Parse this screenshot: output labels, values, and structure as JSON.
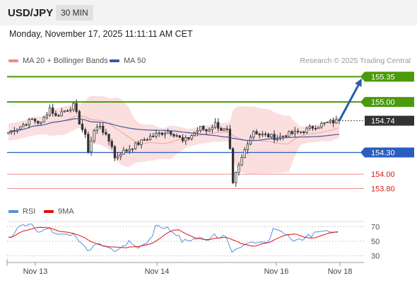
{
  "header": {
    "symbol": "USD/JPY",
    "timeframe": "30 MIN"
  },
  "date_label": "Monday, November 17, 2025 11:11:11 AM CET",
  "research": "Research © 2025 Trading Central",
  "legend": {
    "bollinger": {
      "label": "MA 20 + Bollinger Bands",
      "color": "#f08a8a"
    },
    "ma50": {
      "label": "MA 50",
      "color": "#3d5a9e"
    },
    "rsi": {
      "label": "RSI",
      "color": "#5b8de0"
    },
    "rsi_ma": {
      "label": "9MA",
      "color": "#e01010"
    }
  },
  "chart_data": [
    {
      "type": "candlestick",
      "x_ticks": [
        "Nov 13",
        "Nov 14",
        "Nov 16",
        "Nov 18"
      ],
      "ylim": [
        153.55,
        155.55
      ],
      "price_levels": [
        {
          "value": 155.35,
          "label": "155.35",
          "kind": "resistance-target"
        },
        {
          "value": 155.0,
          "label": "155.00",
          "kind": "resistance"
        },
        {
          "value": 154.74,
          "label": "154.74",
          "kind": "last-price"
        },
        {
          "value": 154.3,
          "label": "154.30",
          "kind": "support"
        },
        {
          "value": 154.0,
          "label": "154.00",
          "kind": "minor"
        },
        {
          "value": 153.8,
          "label": "153.80",
          "kind": "minor"
        }
      ],
      "close_path": [
        [
          0,
          154.58
        ],
        [
          4,
          154.66
        ],
        [
          8,
          154.76
        ],
        [
          11,
          154.7
        ],
        [
          14,
          154.92
        ],
        [
          16,
          154.8
        ],
        [
          18,
          154.86
        ],
        [
          20,
          154.9
        ],
        [
          22,
          154.95
        ],
        [
          24,
          154.72
        ],
        [
          26,
          154.52
        ],
        [
          27,
          154.33
        ],
        [
          29,
          154.6
        ],
        [
          31,
          154.68
        ],
        [
          33,
          154.52
        ],
        [
          35,
          154.4
        ],
        [
          36,
          154.22
        ],
        [
          38,
          154.3
        ],
        [
          40,
          154.33
        ],
        [
          42,
          154.38
        ],
        [
          45,
          154.45
        ],
        [
          48,
          154.52
        ],
        [
          51,
          154.56
        ],
        [
          54,
          154.6
        ],
        [
          57,
          154.54
        ],
        [
          59,
          154.45
        ],
        [
          61,
          154.5
        ],
        [
          63,
          154.58
        ],
        [
          65,
          154.64
        ],
        [
          67,
          154.6
        ],
        [
          70,
          154.7
        ],
        [
          72,
          154.62
        ],
        [
          74,
          154.6
        ],
        [
          75,
          154.32
        ],
        [
          76,
          153.85
        ],
        [
          77,
          154.0
        ],
        [
          79,
          154.22
        ],
        [
          81,
          154.45
        ],
        [
          83,
          154.6
        ],
        [
          85,
          154.55
        ],
        [
          88,
          154.53
        ],
        [
          91,
          154.5
        ],
        [
          94,
          154.55
        ],
        [
          97,
          154.57
        ],
        [
          100,
          154.6
        ],
        [
          103,
          154.65
        ],
        [
          106,
          154.69
        ],
        [
          109,
          154.72
        ],
        [
          112,
          154.74
        ]
      ],
      "candle_count": 113
    },
    {
      "type": "line",
      "series": [
        {
          "name": "RSI",
          "color": "#5b8de0"
        },
        {
          "name": "9MA",
          "color": "#e01010"
        }
      ],
      "ylim": [
        22,
        78
      ],
      "y_ticks": [
        70,
        50,
        30
      ]
    }
  ]
}
